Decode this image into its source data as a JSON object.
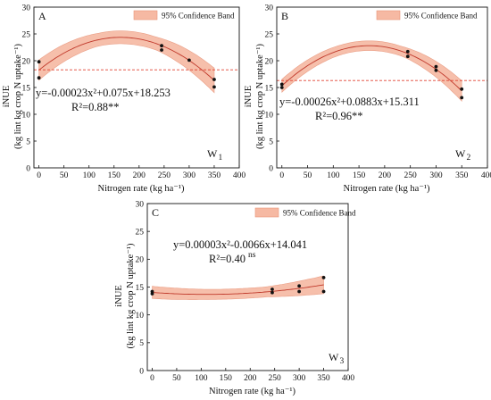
{
  "chart_data": [
    {
      "type": "scatter",
      "panel_letter": "A",
      "corner_tag": "W",
      "corner_tag_sub": "1",
      "legend": "95% Confidence Band",
      "equation": "y=-0.00023x²+0.075x+18.253",
      "r2_text": "R²=0.88**",
      "xlabel": "Nitrogen rate (kg ha⁻¹)",
      "ylabel_line1": "iNUE",
      "ylabel_line2": "(kg lint kg crop N uptake⁻¹)",
      "xlim": [
        -10,
        400
      ],
      "ylim": [
        0,
        30
      ],
      "x_ticks": [
        "0",
        "50",
        "100",
        "150",
        "200",
        "250",
        "300",
        "350",
        "400"
      ],
      "y_ticks": [
        "0",
        "5",
        "10",
        "15",
        "20",
        "25",
        "30"
      ],
      "coef": [
        -0.00023,
        0.075,
        18.253
      ],
      "band_halfwidth": [
        1.9,
        1.2,
        1.2,
        2.3
      ],
      "reference_y": 18.3,
      "points": [
        {
          "x": 0,
          "y": 19.8
        },
        {
          "x": 0,
          "y": 16.8
        },
        {
          "x": 245,
          "y": 22.8
        },
        {
          "x": 245,
          "y": 22.0
        },
        {
          "x": 300,
          "y": 20.1
        },
        {
          "x": 350,
          "y": 16.5
        },
        {
          "x": 350,
          "y": 15.1
        }
      ]
    },
    {
      "type": "scatter",
      "panel_letter": "B",
      "corner_tag": "W",
      "corner_tag_sub": "2",
      "legend": "95% Confidence Band",
      "equation": "y=-0.00026x²+0.0883x+15.311",
      "r2_text": "R²=0.96**",
      "xlabel": "Nitrogen rate (kg ha⁻¹)",
      "ylabel_line1": "iNUE",
      "ylabel_line2": "(kg lint kg crop N uptake⁻¹)",
      "xlim": [
        -10,
        400
      ],
      "ylim": [
        0,
        30
      ],
      "x_ticks": [
        "0",
        "50",
        "100",
        "150",
        "200",
        "250",
        "300",
        "350",
        "400"
      ],
      "y_ticks": [
        "0",
        "5",
        "10",
        "15",
        "20",
        "25",
        "30"
      ],
      "coef": [
        -0.00026,
        0.0883,
        15.311
      ],
      "band_halfwidth": [
        1.2,
        0.9,
        0.9,
        1.9
      ],
      "reference_y": 16.3,
      "points": [
        {
          "x": 0,
          "y": 15.6
        },
        {
          "x": 0,
          "y": 15.0
        },
        {
          "x": 245,
          "y": 21.7
        },
        {
          "x": 245,
          "y": 20.8
        },
        {
          "x": 300,
          "y": 18.9
        },
        {
          "x": 300,
          "y": 18.2
        },
        {
          "x": 350,
          "y": 14.7
        },
        {
          "x": 350,
          "y": 13.1
        }
      ]
    },
    {
      "type": "scatter",
      "panel_letter": "C",
      "corner_tag": "W",
      "corner_tag_sub": "3",
      "legend": "95% Confidence Band",
      "equation": "y=0.00003x²-0.0066x+14.041",
      "r2_text": "R²=0.40",
      "r2_suffix": "ns",
      "xlabel": "Nitrogen rate (kg ha⁻¹)",
      "ylabel_line1": "iNUE",
      "ylabel_line2": "(kg lint kg crop N uptake⁻¹)",
      "xlim": [
        -10,
        400
      ],
      "ylim": [
        0,
        30
      ],
      "x_ticks": [
        "0",
        "50",
        "100",
        "150",
        "200",
        "250",
        "300",
        "350",
        "400"
      ],
      "y_ticks": [
        "0",
        "5",
        "10",
        "15",
        "20",
        "25",
        "30"
      ],
      "coef": [
        3e-05,
        -0.0066,
        14.041
      ],
      "band_halfwidth": [
        1.1,
        0.9,
        0.9,
        1.6
      ],
      "reference_y": null,
      "points": [
        {
          "x": 0,
          "y": 14.2
        },
        {
          "x": 0,
          "y": 13.8
        },
        {
          "x": 245,
          "y": 14.6
        },
        {
          "x": 245,
          "y": 14.0
        },
        {
          "x": 300,
          "y": 15.2
        },
        {
          "x": 300,
          "y": 14.2
        },
        {
          "x": 350,
          "y": 16.7
        },
        {
          "x": 350,
          "y": 14.2
        }
      ]
    }
  ]
}
